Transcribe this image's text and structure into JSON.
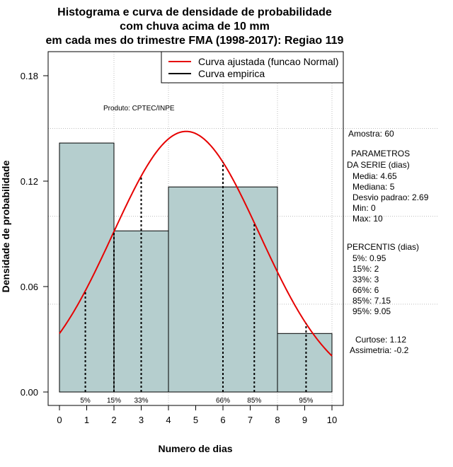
{
  "chart_data": {
    "type": "histogram",
    "title_lines": [
      "Histograma e curva de densidade de probabilidade",
      "com chuva acima de 10 mm",
      "em cada mes do trimestre FMA (1998-2017): Regiao 119"
    ],
    "xlabel": "Numero de dias",
    "ylabel": "Densidade de probabilidade",
    "xlim": [
      -0.4,
      10.4
    ],
    "ylim": [
      -0.008,
      0.19
    ],
    "x_ticks": [
      0,
      1,
      2,
      3,
      4,
      5,
      6,
      7,
      8,
      9,
      10
    ],
    "y_ticks": [
      0.0,
      0.06,
      0.12,
      0.18
    ],
    "y_tick_labels": [
      "0.00",
      "0.06",
      "0.12",
      "0.18"
    ],
    "grid": true,
    "bar_color": "#b5cece",
    "bins": [
      {
        "x0": 0,
        "x1": 2,
        "density": 0.1417
      },
      {
        "x0": 2,
        "x1": 4,
        "density": 0.0917
      },
      {
        "x0": 4,
        "x1": 8,
        "density": 0.1167
      },
      {
        "x0": 8,
        "x1": 10,
        "density": 0.0333
      }
    ],
    "normal_fit": {
      "mean": 4.65,
      "sd": 2.69,
      "color": "#e60000"
    },
    "percentile_markers": [
      {
        "label": "5%",
        "x": 0.95
      },
      {
        "label": "15%",
        "x": 2
      },
      {
        "label": "33%",
        "x": 3
      },
      {
        "label": "66%",
        "x": 6
      },
      {
        "label": "85%",
        "x": 7.15
      },
      {
        "label": "95%",
        "x": 9.05
      }
    ],
    "legend": {
      "position": "top-right",
      "items": [
        {
          "label": "Curva ajustada (funcao Normal)",
          "color": "#e60000"
        },
        {
          "label": "Curva empirica",
          "color": "#000000"
        }
      ]
    },
    "product_label": "Produto: CPTEC/INPE"
  },
  "stats": {
    "sample": "Amostra: 60",
    "params_title_1": "PARAMETROS",
    "params_title_2": "DA SERIE (dias)",
    "params": [
      "Media: 4.65",
      "Mediana: 5",
      "Desvio padrao: 2.69",
      "Min: 0",
      "Max: 10"
    ],
    "percentis_title": "PERCENTIS (dias)",
    "percentis": [
      "5%: 0.95",
      "15%: 2",
      "33%: 3",
      "66%: 6",
      "85%: 7.15",
      "95%: 9.05"
    ],
    "curtose": "Curtose: 1.12",
    "assimetria": "Assimetria: -0.2"
  }
}
